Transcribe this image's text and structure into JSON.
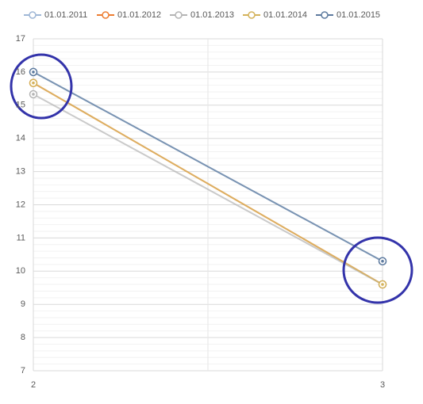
{
  "chart_data": {
    "type": "line",
    "x": [
      2,
      3
    ],
    "series": [
      {
        "name": "01.01.2011",
        "color": "#9fb7d6",
        "values": [
          16,
          10.3
        ]
      },
      {
        "name": "01.01.2012",
        "color": "#ed7d31",
        "values": [
          15.67,
          9.6
        ]
      },
      {
        "name": "01.01.2013",
        "color": "#b4b4b4",
        "values": [
          15.33,
          9.6
        ]
      },
      {
        "name": "01.01.2014",
        "color": "#d4b25a",
        "values": [
          15.67,
          9.6
        ]
      },
      {
        "name": "01.01.2015",
        "color": "#5d7a9e",
        "values": [
          16,
          10.3
        ]
      }
    ],
    "xlim": [
      2,
      3
    ],
    "xticks": [
      2,
      3
    ],
    "ylim": [
      7,
      17
    ],
    "yticks": [
      7,
      8,
      9,
      10,
      11,
      12,
      13,
      14,
      15,
      16,
      17
    ],
    "grid": true,
    "legend": "top"
  }
}
